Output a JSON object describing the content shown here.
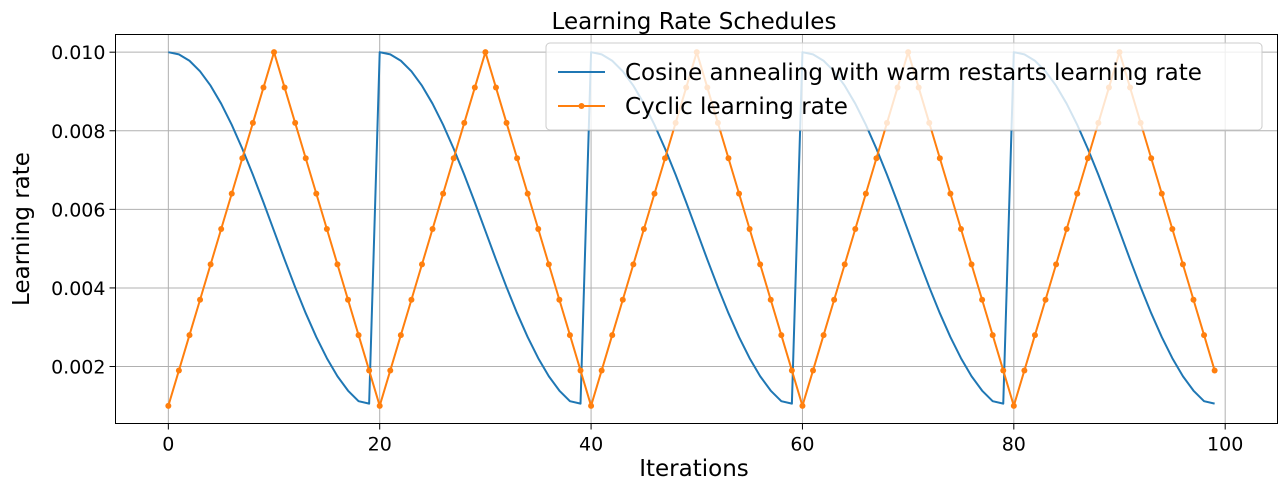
{
  "chart_data": {
    "type": "line",
    "title": "Learning Rate Schedules",
    "xlabel": "Iterations",
    "ylabel": "Learning rate",
    "xlim": [
      -5,
      104.95
    ],
    "ylim": [
      0.00055,
      0.01045
    ],
    "xticks": [
      0,
      20,
      40,
      60,
      80,
      100
    ],
    "xtick_labels": [
      "0",
      "20",
      "40",
      "60",
      "80",
      "100"
    ],
    "yticks": [
      0.002,
      0.004,
      0.006,
      0.008,
      0.01
    ],
    "ytick_labels": [
      "0.002",
      "0.004",
      "0.006",
      "0.008",
      "0.010"
    ],
    "grid": true,
    "legend_position": "top-right",
    "series": [
      {
        "name": "Cosine annealing with warm restarts learning rate",
        "color": "#1f77b4",
        "marker": "none",
        "x": [
          0,
          1,
          2,
          3,
          4,
          5,
          6,
          7,
          8,
          9,
          10,
          11,
          12,
          13,
          14,
          15,
          16,
          17,
          18,
          19,
          20,
          21,
          22,
          23,
          24,
          25,
          26,
          27,
          28,
          29,
          30,
          31,
          32,
          33,
          34,
          35,
          36,
          37,
          38,
          39,
          40,
          41,
          42,
          43,
          44,
          45,
          46,
          47,
          48,
          49,
          50,
          51,
          52,
          53,
          54,
          55,
          56,
          57,
          58,
          59,
          60,
          61,
          62,
          63,
          64,
          65,
          66,
          67,
          68,
          69,
          70,
          71,
          72,
          73,
          74,
          75,
          76,
          77,
          78,
          79,
          80,
          81,
          82,
          83,
          84,
          85,
          86,
          87,
          88,
          89,
          90,
          91,
          92,
          93,
          94,
          95,
          96,
          97,
          98,
          99
        ],
        "y": [
          0.01,
          0.009945,
          0.009782,
          0.009514,
          0.009147,
          0.008689,
          0.008151,
          0.007543,
          0.006881,
          0.006178,
          0.00545,
          0.004722,
          0.004019,
          0.003357,
          0.002749,
          0.002211,
          0.001753,
          0.001386,
          0.001118,
          0.001055,
          0.01,
          0.009945,
          0.009782,
          0.009514,
          0.009147,
          0.008689,
          0.008151,
          0.007543,
          0.006881,
          0.006178,
          0.00545,
          0.004722,
          0.004019,
          0.003357,
          0.002749,
          0.002211,
          0.001753,
          0.001386,
          0.001118,
          0.001055,
          0.01,
          0.009945,
          0.009782,
          0.009514,
          0.009147,
          0.008689,
          0.008151,
          0.007543,
          0.006881,
          0.006178,
          0.00545,
          0.004722,
          0.004019,
          0.003357,
          0.002749,
          0.002211,
          0.001753,
          0.001386,
          0.001118,
          0.001055,
          0.01,
          0.009945,
          0.009782,
          0.009514,
          0.009147,
          0.008689,
          0.008151,
          0.007543,
          0.006881,
          0.006178,
          0.00545,
          0.004722,
          0.004019,
          0.003357,
          0.002749,
          0.002211,
          0.001753,
          0.001386,
          0.001118,
          0.001055,
          0.01,
          0.009945,
          0.009782,
          0.009514,
          0.009147,
          0.008689,
          0.008151,
          0.007543,
          0.006881,
          0.006178,
          0.00545,
          0.004722,
          0.004019,
          0.003357,
          0.002749,
          0.002211,
          0.001753,
          0.001386,
          0.001118,
          0.001055
        ]
      },
      {
        "name": "Cyclic learning rate",
        "color": "#ff7f0e",
        "marker": "circle",
        "x": [
          0,
          1,
          2,
          3,
          4,
          5,
          6,
          7,
          8,
          9,
          10,
          11,
          12,
          13,
          14,
          15,
          16,
          17,
          18,
          19,
          20,
          21,
          22,
          23,
          24,
          25,
          26,
          27,
          28,
          29,
          30,
          31,
          32,
          33,
          34,
          35,
          36,
          37,
          38,
          39,
          40,
          41,
          42,
          43,
          44,
          45,
          46,
          47,
          48,
          49,
          50,
          51,
          52,
          53,
          54,
          55,
          56,
          57,
          58,
          59,
          60,
          61,
          62,
          63,
          64,
          65,
          66,
          67,
          68,
          69,
          70,
          71,
          72,
          73,
          74,
          75,
          76,
          77,
          78,
          79,
          80,
          81,
          82,
          83,
          84,
          85,
          86,
          87,
          88,
          89,
          90,
          91,
          92,
          93,
          94,
          95,
          96,
          97,
          98,
          99
        ],
        "y": [
          0.001,
          0.0019,
          0.0028,
          0.0037,
          0.0046,
          0.0055,
          0.0064,
          0.0073,
          0.0082,
          0.0091,
          0.01,
          0.0091,
          0.0082,
          0.0073,
          0.0064,
          0.0055,
          0.0046,
          0.0037,
          0.0028,
          0.0019,
          0.001,
          0.0019,
          0.0028,
          0.0037,
          0.0046,
          0.0055,
          0.0064,
          0.0073,
          0.0082,
          0.0091,
          0.01,
          0.0091,
          0.0082,
          0.0073,
          0.0064,
          0.0055,
          0.0046,
          0.0037,
          0.0028,
          0.0019,
          0.001,
          0.0019,
          0.0028,
          0.0037,
          0.0046,
          0.0055,
          0.0064,
          0.0073,
          0.0082,
          0.0091,
          0.01,
          0.0091,
          0.0082,
          0.0073,
          0.0064,
          0.0055,
          0.0046,
          0.0037,
          0.0028,
          0.0019,
          0.001,
          0.0019,
          0.0028,
          0.0037,
          0.0046,
          0.0055,
          0.0064,
          0.0073,
          0.0082,
          0.0091,
          0.01,
          0.0091,
          0.0082,
          0.0073,
          0.0064,
          0.0055,
          0.0046,
          0.0037,
          0.0028,
          0.0019,
          0.001,
          0.0019,
          0.0028,
          0.0037,
          0.0046,
          0.0055,
          0.0064,
          0.0073,
          0.0082,
          0.0091,
          0.01,
          0.0091,
          0.0082,
          0.0073,
          0.0064,
          0.0055,
          0.0046,
          0.0037,
          0.0028,
          0.0019
        ]
      }
    ]
  }
}
